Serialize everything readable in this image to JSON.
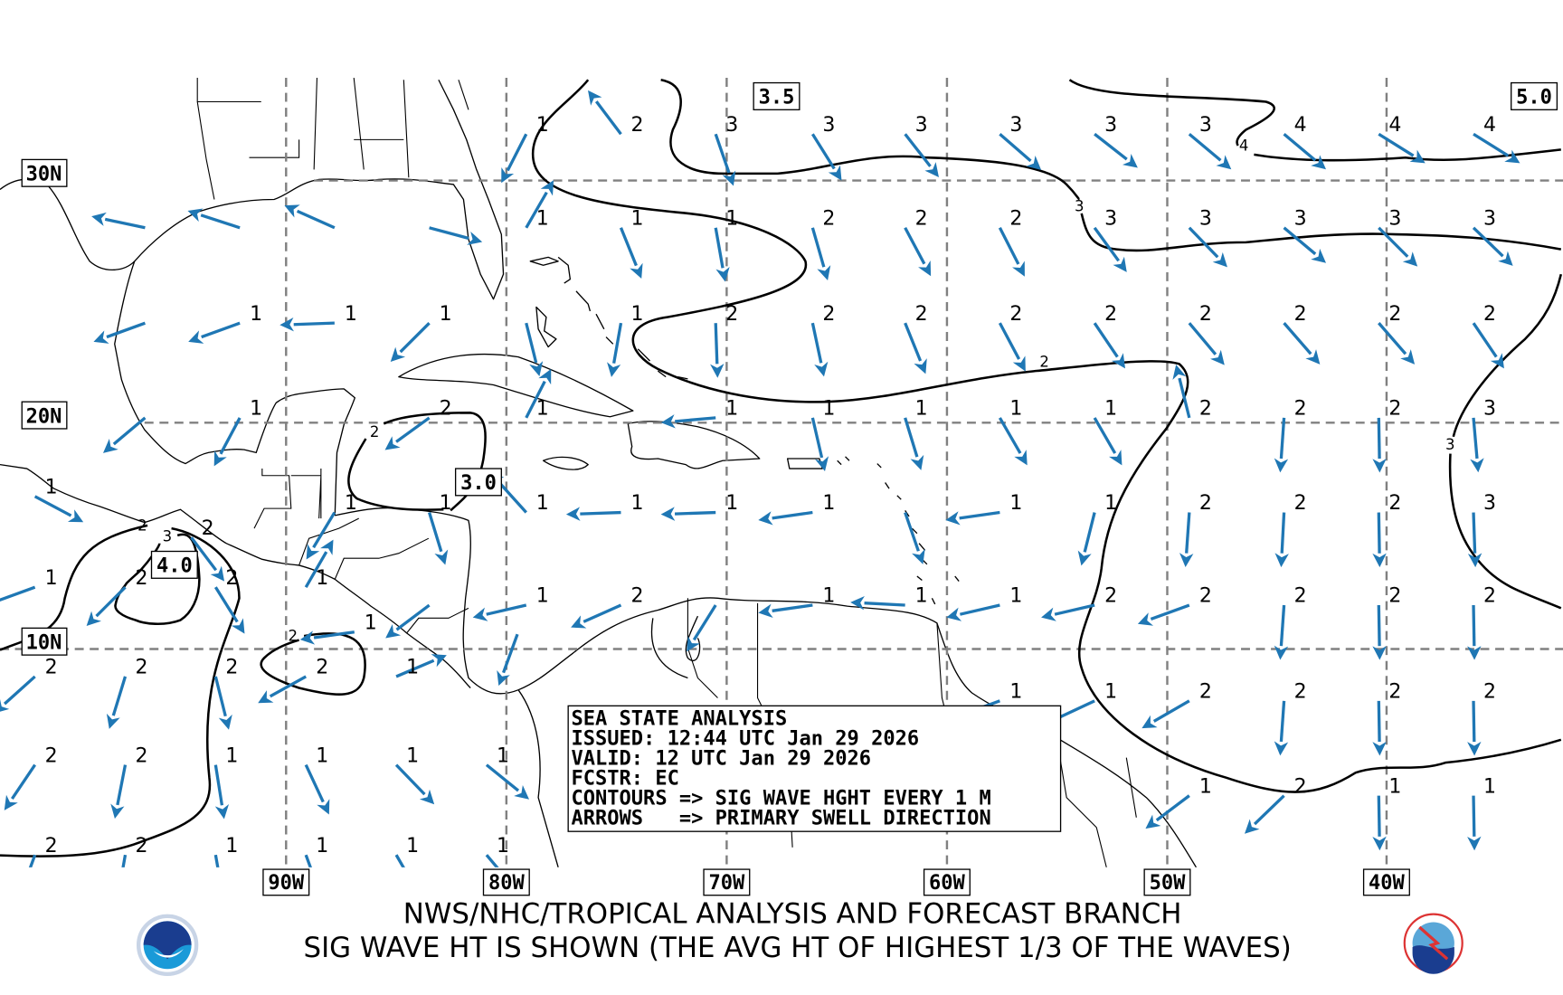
{
  "info_box": {
    "line1": "SEA STATE ANALYSIS",
    "line2": "ISSUED: 12:44 UTC Jan 29 2026",
    "line3": "VALID: 12 UTC Jan 29 2026",
    "line4": "FCSTR: EC",
    "line5": "CONTOURS => SIG WAVE HGHT EVERY 1 M",
    "line6": "ARROWS   => PRIMARY SWELL DIRECTION"
  },
  "footer": {
    "line1": "NWS/NHC/TROPICAL ANALYSIS AND FORECAST BRANCH",
    "line2": "SIG WAVE HT IS SHOWN (THE AVG HT OF HIGHEST 1/3 OF THE WAVES)",
    "logo_left": "NOAA",
    "logo_right": "TAFB"
  },
  "lon_labels": [
    "90W",
    "80W",
    "70W",
    "60W",
    "50W",
    "40W"
  ],
  "lat_labels": [
    "30N",
    "20N",
    "10N"
  ],
  "max_labels": [
    "3.5",
    "5.0",
    "3.0",
    "4.0"
  ],
  "contour_labels": [
    "4",
    "3",
    "2",
    "3",
    "2",
    "3",
    "2",
    "2"
  ],
  "colors": {
    "arrow": "#1f77b4",
    "grid": "#808080",
    "contour": "#000000"
  },
  "swell_rows": [
    {
      "lat": 31.8,
      "arrows": [
        [
          -79.1,
          "1",
          207
        ],
        [
          -74.8,
          "2",
          323
        ],
        [
          -70.5,
          "3",
          161
        ],
        [
          -66.1,
          "3",
          148
        ],
        [
          -61.9,
          "3",
          142
        ],
        [
          -57.6,
          "3",
          131
        ],
        [
          -53.3,
          "3",
          128
        ],
        [
          -49.0,
          "3",
          130
        ],
        [
          -44.7,
          "4",
          130
        ],
        [
          -40.4,
          "4",
          122
        ],
        [
          -36.1,
          "4",
          122
        ]
      ]
    },
    {
      "lat": 28.1,
      "arrows": [
        [
          -96.4,
          "",
          282
        ],
        [
          -92.1,
          "",
          288
        ],
        [
          -87.8,
          "",
          294
        ],
        [
          -83.5,
          "",
          105
        ],
        [
          -79.1,
          "1",
          30
        ],
        [
          -74.8,
          "1",
          158
        ],
        [
          -70.5,
          "1",
          170
        ],
        [
          -66.1,
          "2",
          164
        ],
        [
          -61.9,
          "2",
          152
        ],
        [
          -57.6,
          "2",
          153
        ],
        [
          -53.3,
          "3",
          144
        ],
        [
          -49.0,
          "3",
          136
        ],
        [
          -44.7,
          "3",
          130
        ],
        [
          -40.4,
          "3",
          135
        ],
        [
          -36.1,
          "3",
          134
        ]
      ]
    },
    {
      "lat": 24.2,
      "arrows": [
        [
          -96.4,
          "",
          250
        ],
        [
          -92.1,
          "1",
          250
        ],
        [
          -87.8,
          "1",
          268
        ],
        [
          -83.5,
          "1",
          225
        ],
        [
          -79.1,
          "",
          166
        ],
        [
          -74.8,
          "1",
          190
        ],
        [
          -70.5,
          "2",
          178
        ],
        [
          -66.1,
          "2",
          168
        ],
        [
          -61.9,
          "2",
          158
        ],
        [
          -57.6,
          "2",
          152
        ],
        [
          -53.3,
          "2",
          146
        ],
        [
          -49.0,
          "2",
          140
        ],
        [
          -44.7,
          "2",
          139
        ],
        [
          -40.4,
          "2",
          139
        ],
        [
          -36.1,
          "2",
          146
        ]
      ]
    },
    {
      "lat": 20.2,
      "arrows": [
        [
          -96.4,
          "",
          230
        ],
        [
          -92.1,
          "1",
          208
        ],
        [
          -83.5,
          "2",
          234
        ],
        [
          -79.1,
          "1",
          27
        ],
        [
          -70.5,
          "1",
          265
        ],
        [
          -66.1,
          "1",
          167
        ],
        [
          -61.9,
          "1",
          163
        ],
        [
          -57.6,
          "1",
          150
        ],
        [
          -53.3,
          "1",
          150
        ],
        [
          -49.0,
          "2",
          346
        ],
        [
          -44.7,
          "2",
          184
        ],
        [
          -40.4,
          "2",
          179
        ],
        [
          -36.1,
          "3",
          175
        ]
      ]
    },
    {
      "lat": 16.8,
      "arrows": [
        [
          -101.4,
          "1",
          118
        ]
      ]
    },
    {
      "lat": 16.1,
      "arrows": [
        [
          -87.8,
          "1",
          211
        ],
        [
          -83.5,
          "1",
          163
        ],
        [
          -79.1,
          "1",
          318
        ],
        [
          -74.8,
          "1",
          268
        ],
        [
          -70.5,
          "1",
          268
        ],
        [
          -66.1,
          "1",
          262
        ],
        [
          -61.9,
          "",
          161
        ],
        [
          -57.6,
          "1",
          262
        ],
        [
          -53.3,
          "1",
          194
        ],
        [
          -49.0,
          "2",
          184
        ],
        [
          -44.7,
          "2",
          183
        ],
        [
          -40.4,
          "2",
          179
        ],
        [
          -36.1,
          "3",
          178
        ]
      ]
    },
    {
      "lat": 15.0,
      "arrows": [
        [
          -94.3,
          "2",
          143
        ]
      ]
    },
    {
      "lat": 12.8,
      "arrows": [
        [
          -101.4,
          "1",
          250
        ],
        [
          -97.3,
          "2",
          225
        ],
        [
          -93.2,
          "2",
          148
        ],
        [
          -89.1,
          "1",
          30
        ]
      ]
    },
    {
      "lat": 12.0,
      "arrows": [
        [
          -83.5,
          "",
          233
        ],
        [
          -79.1,
          "1",
          257
        ],
        [
          -74.8,
          "2",
          246
        ],
        [
          -70.5,
          "",
          212
        ],
        [
          -66.1,
          "1",
          262
        ],
        [
          -61.9,
          "1",
          273
        ],
        [
          -57.6,
          "1",
          257
        ],
        [
          -53.3,
          "2",
          257
        ],
        [
          -49.0,
          "2",
          250
        ],
        [
          -44.7,
          "2",
          184
        ],
        [
          -40.4,
          "2",
          179
        ],
        [
          -36.1,
          "2",
          179
        ]
      ]
    },
    {
      "lat": 10.8,
      "arrows": [
        [
          -86.9,
          "1",
          262
        ]
      ]
    },
    {
      "lat": 10.7,
      "arrows": [
        [
          -79.5,
          "",
          200
        ]
      ]
    },
    {
      "lat": 8.8,
      "arrows": [
        [
          -101.4,
          "2",
          228
        ],
        [
          -97.3,
          "2",
          197
        ],
        [
          -93.2,
          "2",
          166
        ],
        [
          -89.1,
          "2",
          241
        ],
        [
          -85.0,
          "1",
          67
        ]
      ]
    },
    {
      "lat": 7.7,
      "arrows": [
        [
          -57.6,
          "1",
          250
        ],
        [
          -53.3,
          "1",
          245
        ],
        [
          -49.0,
          "2",
          240
        ],
        [
          -44.7,
          "2",
          184
        ],
        [
          -40.4,
          "2",
          179
        ],
        [
          -36.1,
          "2",
          179
        ]
      ]
    },
    {
      "lat": 4.8,
      "arrows": [
        [
          -101.4,
          "2",
          214
        ],
        [
          -97.3,
          "2",
          191
        ],
        [
          -93.2,
          "1",
          171
        ],
        [
          -89.1,
          "1",
          155
        ],
        [
          -85.0,
          "1",
          136
        ],
        [
          -80.9,
          "1",
          129
        ]
      ]
    },
    {
      "lat": 3.4,
      "arrows": [
        [
          -49.0,
          "1",
          233
        ],
        [
          -44.7,
          "2",
          226
        ],
        [
          -40.4,
          "1",
          179
        ],
        [
          -36.1,
          "1",
          179
        ]
      ]
    },
    {
      "lat": 0.7,
      "arrows": [
        [
          -101.4,
          "2",
          200
        ],
        [
          -97.3,
          "2",
          190
        ],
        [
          -93.2,
          "1",
          170
        ],
        [
          -89.1,
          "1",
          160
        ],
        [
          -85.0,
          "1",
          150
        ],
        [
          -80.9,
          "1",
          140
        ]
      ]
    }
  ]
}
